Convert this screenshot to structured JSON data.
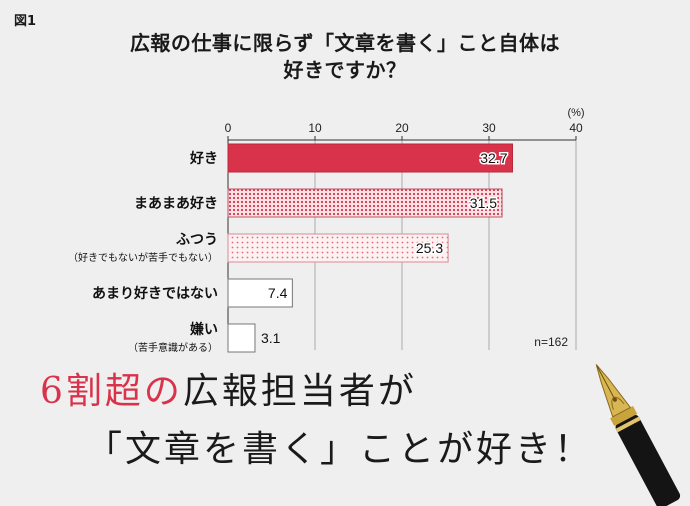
{
  "figure_label": "図1",
  "title_line1": "広報の仕事に限らず「文章を書く」こと自体は",
  "title_line2": "好きですか？",
  "caption": {
    "line1_highlight": "6割超の",
    "line1_rest": "広報担当者が",
    "line2": "「文章を書く」ことが好き！"
  },
  "colors": {
    "accent": "#d8334a",
    "background": "#efefef"
  },
  "chart_data": {
    "type": "bar",
    "orientation": "horizontal",
    "unit_label": "(%)",
    "xlim": [
      0,
      40
    ],
    "ticks": [
      0,
      10,
      20,
      30,
      40
    ],
    "categories": [
      {
        "label": "好き",
        "sublabel": "",
        "value": 32.7,
        "value_label": "32.7",
        "fill": "solid-red"
      },
      {
        "label": "まあまあ好き",
        "sublabel": "",
        "value": 31.5,
        "value_label": "31.5",
        "fill": "dense-dots"
      },
      {
        "label": "ふつう",
        "sublabel": "（好きでもないが苦手でもない）",
        "value": 25.3,
        "value_label": "25.3",
        "fill": "light-dots"
      },
      {
        "label": "あまり好きではない",
        "sublabel": "",
        "value": 7.4,
        "value_label": "7.4",
        "fill": "white"
      },
      {
        "label": "嫌い",
        "sublabel": "（苦手意識がある）",
        "value": 3.1,
        "value_label": "3.1",
        "fill": "white"
      }
    ],
    "note": "n=162",
    "grid": true
  }
}
